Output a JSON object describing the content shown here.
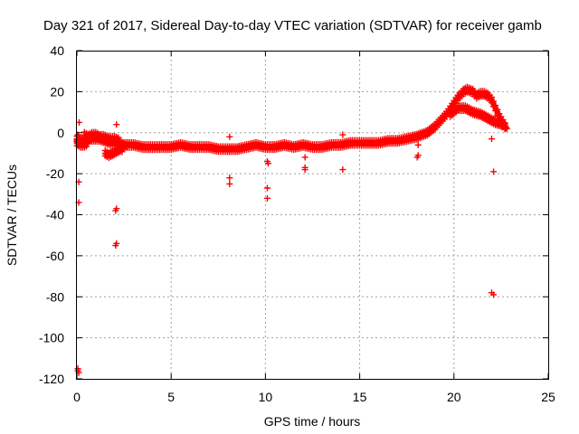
{
  "chart_data": {
    "type": "scatter",
    "title": "Day 321 of 2017, Sidereal Day-to-day VTEC variation (SDTVAR) for receiver gamb",
    "xlabel": "GPS time / hours",
    "ylabel": "SDTVAR / TECUs",
    "xlim": [
      0,
      25
    ],
    "ylim": [
      -120,
      40
    ],
    "x_ticks": [
      0,
      5,
      10,
      15,
      20,
      25
    ],
    "x_tick_labels": [
      "0",
      "5",
      "10",
      "15",
      "20",
      "25"
    ],
    "y_ticks": [
      -120,
      -100,
      -80,
      -60,
      -40,
      -20,
      0,
      20,
      40
    ],
    "y_tick_labels": [
      "-120",
      "-100",
      "-80",
      "-60",
      "-40",
      "-20",
      "0",
      "20",
      "40"
    ],
    "grid": true,
    "marker": "+",
    "series_color": "#ff0000",
    "main_trend": [
      [
        0.0,
        -3
      ],
      [
        0.3,
        -4
      ],
      [
        0.6,
        -3
      ],
      [
        0.9,
        -3
      ],
      [
        1.2,
        -3
      ],
      [
        1.5,
        -4
      ],
      [
        1.8,
        -5
      ],
      [
        2.1,
        -5
      ],
      [
        2.5,
        -6
      ],
      [
        3.0,
        -6
      ],
      [
        3.5,
        -7
      ],
      [
        4.0,
        -7
      ],
      [
        4.5,
        -7
      ],
      [
        5.0,
        -7
      ],
      [
        5.5,
        -6
      ],
      [
        6.0,
        -7
      ],
      [
        6.5,
        -7
      ],
      [
        7.0,
        -7
      ],
      [
        7.5,
        -8
      ],
      [
        8.0,
        -8
      ],
      [
        8.5,
        -8
      ],
      [
        9.0,
        -7
      ],
      [
        9.5,
        -6
      ],
      [
        10.0,
        -7
      ],
      [
        10.5,
        -7
      ],
      [
        11.0,
        -6
      ],
      [
        11.5,
        -7
      ],
      [
        12.0,
        -6
      ],
      [
        12.5,
        -7
      ],
      [
        13.0,
        -7
      ],
      [
        13.5,
        -6
      ],
      [
        14.0,
        -6
      ],
      [
        14.5,
        -5
      ],
      [
        15.0,
        -5
      ],
      [
        15.5,
        -5
      ],
      [
        16.0,
        -5
      ],
      [
        16.5,
        -4
      ],
      [
        17.0,
        -4
      ],
      [
        17.5,
        -3
      ],
      [
        18.0,
        -2
      ],
      [
        18.3,
        -1
      ],
      [
        18.6,
        0
      ],
      [
        19.0,
        3
      ],
      [
        19.3,
        6
      ],
      [
        19.6,
        9
      ],
      [
        19.9,
        13
      ],
      [
        20.2,
        17
      ],
      [
        20.5,
        20
      ],
      [
        20.7,
        21
      ],
      [
        21.0,
        20
      ],
      [
        21.2,
        18
      ],
      [
        21.4,
        19
      ],
      [
        21.6,
        19
      ],
      [
        21.8,
        18
      ],
      [
        22.0,
        16
      ],
      [
        22.2,
        12
      ],
      [
        22.4,
        8
      ],
      [
        22.6,
        5
      ],
      [
        22.8,
        2
      ]
    ],
    "branches": [
      [
        [
          19.8,
          9
        ],
        [
          20.2,
          12
        ],
        [
          20.6,
          12
        ],
        [
          21.0,
          10
        ],
        [
          21.4,
          9
        ],
        [
          21.8,
          7
        ],
        [
          22.2,
          5
        ],
        [
          22.6,
          4
        ],
        [
          22.8,
          2
        ]
      ],
      [
        [
          1.5,
          -10
        ],
        [
          1.7,
          -11
        ],
        [
          1.9,
          -10
        ],
        [
          2.1,
          -9
        ],
        [
          2.3,
          -8
        ],
        [
          2.5,
          -8
        ]
      ],
      [
        [
          0.4,
          -1
        ],
        [
          0.6,
          -2
        ],
        [
          0.8,
          -1
        ],
        [
          1.0,
          -1
        ],
        [
          1.2,
          -2
        ],
        [
          1.4,
          -2
        ],
        [
          1.7,
          -3
        ],
        [
          2.0,
          -3
        ],
        [
          2.3,
          -4
        ]
      ],
      [
        [
          0.0,
          -5
        ],
        [
          0.2,
          -6
        ],
        [
          0.4,
          -6
        ],
        [
          0.6,
          -5
        ]
      ]
    ],
    "outliers": [
      [
        0.05,
        -1
      ],
      [
        0.1,
        -2
      ],
      [
        0.1,
        -3
      ],
      [
        0.12,
        5
      ],
      [
        0.1,
        -24
      ],
      [
        0.1,
        -34
      ],
      [
        0.05,
        -115
      ],
      [
        0.05,
        -116
      ],
      [
        0.1,
        -117
      ],
      [
        2.1,
        4
      ],
      [
        2.1,
        -37
      ],
      [
        2.05,
        -38
      ],
      [
        2.1,
        -54
      ],
      [
        2.05,
        -55
      ],
      [
        8.1,
        -2
      ],
      [
        8.1,
        -22
      ],
      [
        8.1,
        -25
      ],
      [
        10.1,
        -14
      ],
      [
        10.15,
        -15
      ],
      [
        10.1,
        -27
      ],
      [
        10.1,
        -32
      ],
      [
        12.1,
        -17
      ],
      [
        12.1,
        -18
      ],
      [
        12.1,
        -12
      ],
      [
        14.1,
        -1
      ],
      [
        14.1,
        -18
      ],
      [
        18.1,
        -6
      ],
      [
        18.1,
        -11
      ],
      [
        18.05,
        -12
      ],
      [
        22.0,
        -3
      ],
      [
        22.1,
        -19
      ],
      [
        22.0,
        -78
      ],
      [
        22.1,
        -79
      ],
      [
        22.3,
        8
      ]
    ]
  }
}
